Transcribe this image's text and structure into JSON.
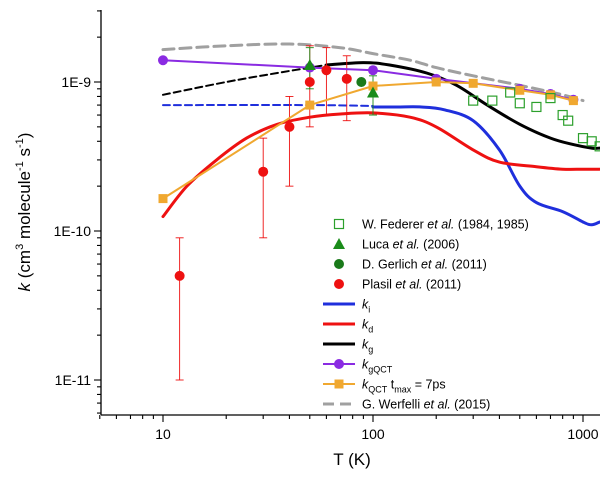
{
  "chart_data": {
    "type": "line",
    "xlabel": "T (K)",
    "ylabel": "k (cm3 molecule-1 s-1)",
    "xscale": "log",
    "yscale": "log",
    "xlim": [
      5,
      1200
    ],
    "ylim": [
      5e-12,
      3e-09
    ],
    "x_tick_labels": [
      {
        "value": 10,
        "label": "10"
      },
      {
        "value": 100,
        "label": "100"
      },
      {
        "value": 1000,
        "label": "1000"
      }
    ],
    "y_tick_labels": [
      {
        "value": 1e-11,
        "label": "1E-11"
      },
      {
        "value": 1e-10,
        "label": "1E-10"
      },
      {
        "value": 1e-09,
        "label": "1E-9"
      }
    ],
    "legend_position": "bottom-right",
    "series": [
      {
        "name": "W. Federer et al. (1984, 1985)",
        "kind": "open-square",
        "color": "#2ca02c",
        "points": [
          [
            300,
            7.5e-10
          ],
          [
            370,
            7.5e-10
          ],
          [
            450,
            8.5e-10
          ],
          [
            500,
            7.2e-10
          ],
          [
            600,
            6.8e-10
          ],
          [
            700,
            7.8e-10
          ],
          [
            800,
            6e-10
          ],
          [
            850,
            5.5e-10
          ],
          [
            1000,
            4.2e-10
          ],
          [
            1100,
            4e-10
          ],
          [
            1200,
            3.7e-10
          ]
        ]
      },
      {
        "name": "Luca et al. (2006)",
        "kind": "triangle",
        "color": "#1a8c1a",
        "points": [
          [
            50,
            1.3e-09
          ],
          [
            100,
            8.5e-10
          ]
        ],
        "errors": [
          [
            50,
            9e-10,
            1.7e-09
          ],
          [
            100,
            6e-10,
            1.1e-09
          ]
        ]
      },
      {
        "name": "D. Gerlich et al. (2011)",
        "kind": "circle",
        "color": "#1a7a1a",
        "points": [
          [
            88,
            1e-09
          ]
        ]
      },
      {
        "name": "Plasil et al. (2011)",
        "kind": "circle",
        "color": "#ee1111",
        "points": [
          [
            12,
            5e-11
          ],
          [
            30,
            2.5e-10
          ],
          [
            40,
            5e-10
          ],
          [
            50,
            1e-09
          ],
          [
            60,
            1.2e-09
          ],
          [
            75,
            1.05e-09
          ]
        ],
        "errors": [
          [
            12,
            1e-11,
            9e-11
          ],
          [
            30,
            9e-11,
            4.2e-10
          ],
          [
            40,
            2e-10,
            8e-10
          ],
          [
            50,
            5e-10,
            1.75e-09
          ],
          [
            60,
            6e-10,
            1.7e-09
          ],
          [
            75,
            5.5e-10,
            1.5e-09
          ]
        ]
      },
      {
        "name": "k_i",
        "kind": "line",
        "color": "#1f2fdc",
        "points": [
          [
            100,
            6.8e-10
          ],
          [
            130,
            6.8e-10
          ],
          [
            170,
            6.8e-10
          ],
          [
            220,
            6.5e-10
          ],
          [
            300,
            5.5e-10
          ],
          [
            400,
            3.5e-10
          ],
          [
            500,
            2e-10
          ],
          [
            600,
            1.55e-10
          ],
          [
            800,
            1.35e-10
          ],
          [
            1000,
            1.15e-10
          ],
          [
            1100,
            1.1e-10
          ],
          [
            1200,
            1.15e-10
          ]
        ]
      },
      {
        "name": "k_i (extrapolated)",
        "kind": "dashed-line",
        "color": "#1f2fdc",
        "points": [
          [
            10,
            7e-10
          ],
          [
            50,
            7e-10
          ],
          [
            100,
            6.9e-10
          ]
        ]
      },
      {
        "name": "k_d",
        "kind": "line",
        "color": "#ee1111",
        "points": [
          [
            10,
            1.25e-10
          ],
          [
            13,
            2e-10
          ],
          [
            18,
            3e-10
          ],
          [
            25,
            4.2e-10
          ],
          [
            35,
            5.2e-10
          ],
          [
            50,
            5.8e-10
          ],
          [
            70,
            6.1e-10
          ],
          [
            100,
            6.2e-10
          ],
          [
            150,
            5.8e-10
          ],
          [
            200,
            5e-10
          ],
          [
            300,
            3.5e-10
          ],
          [
            400,
            2.9e-10
          ],
          [
            600,
            2.7e-10
          ],
          [
            800,
            2.6e-10
          ],
          [
            1000,
            2.6e-10
          ],
          [
            1200,
            2.6e-10
          ]
        ]
      },
      {
        "name": "k_g",
        "kind": "line",
        "color": "#000000",
        "points": [
          [
            60,
            1.3e-09
          ],
          [
            90,
            1.35e-09
          ],
          [
            120,
            1.3e-09
          ],
          [
            180,
            1.15e-09
          ],
          [
            250,
            9.5e-10
          ],
          [
            350,
            7e-10
          ],
          [
            500,
            5.2e-10
          ],
          [
            700,
            4.2e-10
          ],
          [
            900,
            3.8e-10
          ],
          [
            1100,
            3.6e-10
          ],
          [
            1200,
            3.6e-10
          ]
        ]
      },
      {
        "name": "k_g (extrapolated)",
        "kind": "dashed-line",
        "color": "#000000",
        "points": [
          [
            10,
            8.2e-10
          ],
          [
            20,
            1e-09
          ],
          [
            35,
            1.15e-09
          ],
          [
            60,
            1.3e-09
          ]
        ]
      },
      {
        "name": "k_gQCT",
        "kind": "line-circle",
        "color": "#8a2be2",
        "points": [
          [
            10,
            1.4e-09
          ],
          [
            50,
            1.25e-09
          ],
          [
            100,
            1.2e-09
          ],
          [
            200,
            1.05e-09
          ],
          [
            500,
            9e-10
          ],
          [
            700,
            8.3e-10
          ],
          [
            900,
            7.6e-10
          ]
        ]
      },
      {
        "name": "k_QCT t_max = 7ps",
        "kind": "line-square",
        "color": "#f0a830",
        "points": [
          [
            10,
            1.65e-10
          ],
          [
            50,
            7e-10
          ],
          [
            100,
            9.4e-10
          ],
          [
            200,
            1e-09
          ],
          [
            300,
            9.8e-10
          ],
          [
            500,
            8.8e-10
          ],
          [
            700,
            8.2e-10
          ],
          [
            900,
            7.5e-10
          ]
        ]
      },
      {
        "name": "G. Werfelli et al. (2015)",
        "kind": "dashed-line",
        "color": "#a0a0a0",
        "points": [
          [
            10,
            1.65e-09
          ],
          [
            20,
            1.75e-09
          ],
          [
            40,
            1.8e-09
          ],
          [
            70,
            1.7e-09
          ],
          [
            100,
            1.55e-09
          ],
          [
            150,
            1.4e-09
          ],
          [
            200,
            1.25e-09
          ],
          [
            300,
            1.1e-09
          ],
          [
            500,
            9.5e-10
          ],
          [
            800,
            8.2e-10
          ],
          [
            1000,
            7.5e-10
          ]
        ]
      }
    ],
    "legend": [
      {
        "key": "W. Federer et al. (1984, 1985)",
        "parts": [
          [
            "W. Federer ",
            false
          ],
          [
            "et al.",
            true
          ],
          [
            " (1984, 1985)",
            false
          ]
        ],
        "symbol": "open-square",
        "color": "#2ca02c"
      },
      {
        "key": "Luca et al. (2006)",
        "parts": [
          [
            "Luca ",
            false
          ],
          [
            "et al.",
            true
          ],
          [
            " (2006)",
            false
          ]
        ],
        "symbol": "triangle",
        "color": "#1a8c1a"
      },
      {
        "key": "D. Gerlich et al. (2011)",
        "parts": [
          [
            "D. Gerlich ",
            false
          ],
          [
            "et al.",
            true
          ],
          [
            " (2011)",
            false
          ]
        ],
        "symbol": "circle",
        "color": "#1a7a1a"
      },
      {
        "key": "Plasil et al. (2011)",
        "parts": [
          [
            "Plasil ",
            false
          ],
          [
            "et al.",
            true
          ],
          [
            " (2011)",
            false
          ]
        ],
        "symbol": "circle",
        "color": "#ee1111"
      },
      {
        "key": "k_i",
        "main": "k",
        "sub": "i",
        "rest": "",
        "symbol": "line",
        "color": "#1f2fdc"
      },
      {
        "key": "k_d",
        "main": "k",
        "sub": "d",
        "rest": "",
        "symbol": "line",
        "color": "#ee1111"
      },
      {
        "key": "k_g",
        "main": "k",
        "sub": "g",
        "rest": "",
        "symbol": "line",
        "color": "#000000"
      },
      {
        "key": "k_gQCT",
        "main": "k",
        "sub": "gQCT",
        "rest": "",
        "symbol": "line-circle",
        "color": "#8a2be2"
      },
      {
        "key": "k_QCT t_max = 7ps",
        "main": "k",
        "sub": "QCT",
        "rest": " t",
        "sub2": "max",
        "rest2": " = 7ps",
        "symbol": "line-square",
        "color": "#f0a830"
      },
      {
        "key": "G. Werfelli et al. (2015)",
        "parts": [
          [
            "G. Werfelli ",
            false
          ],
          [
            "et al.",
            true
          ],
          [
            " (2015)",
            false
          ]
        ],
        "symbol": "dashed-line",
        "color": "#a0a0a0"
      }
    ]
  }
}
